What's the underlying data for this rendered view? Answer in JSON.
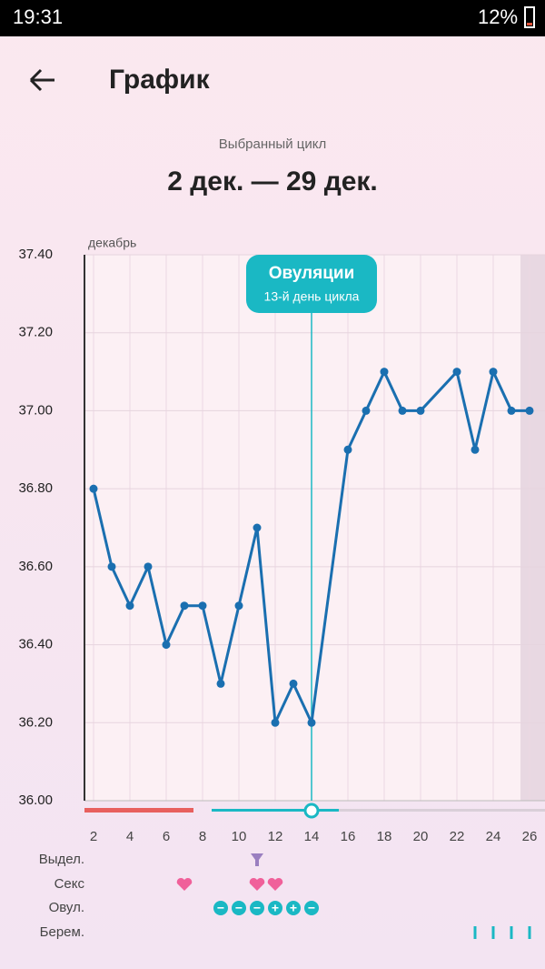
{
  "status_bar": {
    "time": "19:31",
    "battery": "12%"
  },
  "header": {
    "title": "График"
  },
  "cycle": {
    "caption": "Выбранный цикл",
    "range": "2 дек. — 29 дек."
  },
  "chart_data": {
    "type": "line",
    "month_label": "декабрь",
    "x": [
      2,
      3,
      4,
      5,
      6,
      7,
      8,
      9,
      10,
      11,
      12,
      13,
      14,
      16,
      17,
      18,
      19,
      20,
      22,
      23,
      24,
      25,
      26
    ],
    "values": [
      36.8,
      36.6,
      36.5,
      36.6,
      36.4,
      36.5,
      36.5,
      36.3,
      36.5,
      36.7,
      36.2,
      36.3,
      36.2,
      36.9,
      37.0,
      37.1,
      37.0,
      37.0,
      37.1,
      36.9,
      37.1,
      37.0,
      37.0
    ],
    "color": "#1a6fb0",
    "xlim": [
      1.5,
      26.85
    ],
    "ylim": [
      36.0,
      37.4
    ],
    "xticks": [
      2,
      4,
      6,
      8,
      10,
      12,
      14,
      16,
      18,
      20,
      22,
      24,
      26
    ],
    "yticks": [
      {
        "value": 36.0,
        "label": "36.00"
      },
      {
        "value": 36.2,
        "label": "36.20"
      },
      {
        "value": 36.4,
        "label": "36.40"
      },
      {
        "value": 36.6,
        "label": "36.60"
      },
      {
        "value": 36.8,
        "label": "36.80"
      },
      {
        "value": 37.0,
        "label": "37.00"
      },
      {
        "value": 37.2,
        "label": "37.20"
      },
      {
        "value": 37.4,
        "label": "37.40"
      }
    ],
    "grid": true,
    "annotation": {
      "x": 14,
      "title": "Овуляции",
      "subtitle": "13-й день цикла"
    }
  },
  "tracks": [
    {
      "label": "Выдел.",
      "days": [
        11
      ]
    },
    {
      "label": "Секс",
      "days": [
        7,
        11,
        12
      ]
    },
    {
      "label": "Овул.",
      "days": [
        9,
        10,
        11,
        12,
        13,
        14
      ],
      "signs": [
        "−",
        "−",
        "−",
        "+",
        "+",
        "−"
      ]
    },
    {
      "label": "Берем.",
      "days": [
        23,
        24,
        25,
        26
      ]
    }
  ]
}
